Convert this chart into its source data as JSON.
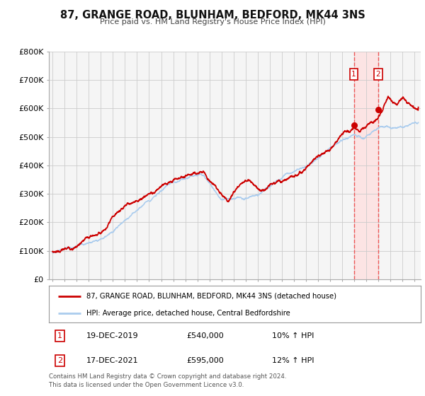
{
  "title": "87, GRANGE ROAD, BLUNHAM, BEDFORD, MK44 3NS",
  "subtitle": "Price paid vs. HM Land Registry's House Price Index (HPI)",
  "ylim": [
    0,
    800000
  ],
  "yticks": [
    0,
    100000,
    200000,
    300000,
    400000,
    500000,
    600000,
    700000,
    800000
  ],
  "ytick_labels": [
    "£0",
    "£100K",
    "£200K",
    "£300K",
    "£400K",
    "£500K",
    "£600K",
    "£700K",
    "£800K"
  ],
  "xlim_start": 1994.7,
  "xlim_end": 2025.5,
  "sale1_date": 2019.96,
  "sale1_price": 540000,
  "sale1_label": "19-DEC-2019",
  "sale1_pct": "10%",
  "sale2_date": 2021.96,
  "sale2_price": 595000,
  "sale2_label": "17-DEC-2021",
  "sale2_pct": "12%",
  "line1_color": "#cc0000",
  "line2_color": "#aaccee",
  "vline_color": "#ee5555",
  "shade_color": "#ffdddd",
  "grid_color": "#cccccc",
  "legend_label1": "87, GRANGE ROAD, BLUNHAM, BEDFORD, MK44 3NS (detached house)",
  "legend_label2": "HPI: Average price, detached house, Central Bedfordshire",
  "footer": "Contains HM Land Registry data © Crown copyright and database right 2024.\nThis data is licensed under the Open Government Licence v3.0.",
  "background_color": "#ffffff",
  "plot_bg_color": "#f5f5f5"
}
